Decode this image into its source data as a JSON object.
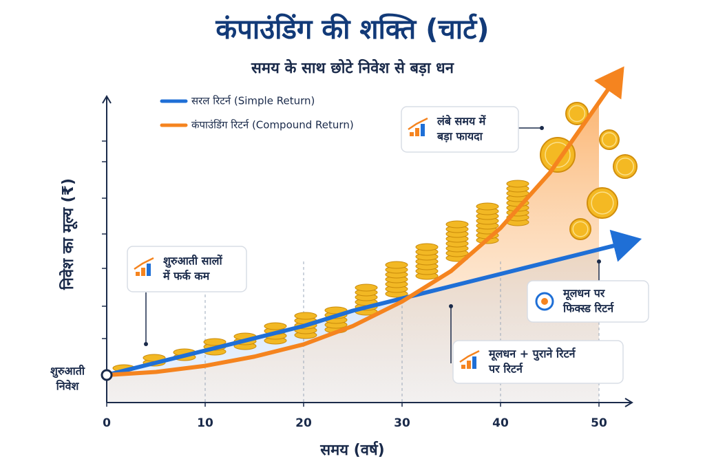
{
  "chart_data": {
    "type": "line",
    "title": "कंपाउंडिंग की शक्ति (चार्ट)",
    "subtitle": "समय के साथ छोटे निवेश से बड़ा धन",
    "xlabel": "समय (वर्ष)",
    "ylabel": "निवेश का मूल्य (₹)",
    "start_label": [
      "शुरुआती",
      "निवेश"
    ],
    "x": [
      0,
      5,
      10,
      15,
      20,
      25,
      30,
      35,
      40,
      45,
      50
    ],
    "xlim": [
      0,
      50
    ],
    "xticks": [
      0,
      10,
      20,
      30,
      40,
      50
    ],
    "ylim": [
      0,
      100
    ],
    "series": [
      {
        "name": "सरल रिटर्न (Simple Return)",
        "color": "#1f6fd6",
        "values": [
          9,
          13,
          17,
          21,
          25,
          30,
          34,
          38,
          42,
          46,
          50
        ]
      },
      {
        "name": "कंपाउंडिंग रिटर्न (Compound Return)",
        "color": "#f5841f",
        "values": [
          9,
          10,
          12,
          15,
          19,
          25,
          33,
          43,
          57,
          75,
          98
        ]
      }
    ],
    "annotations": [
      {
        "lines": [
          "लंबे समय में",
          "बड़ा फायदा"
        ]
      },
      {
        "lines": [
          "शुरुआती सालों",
          "में फर्क कम"
        ]
      },
      {
        "lines": [
          "मूलधन पर",
          "फिक्स्ड रिटर्न"
        ]
      },
      {
        "lines": [
          "मूलधन + पुराने रिटर्न",
          "पर रिटर्न"
        ]
      }
    ]
  }
}
